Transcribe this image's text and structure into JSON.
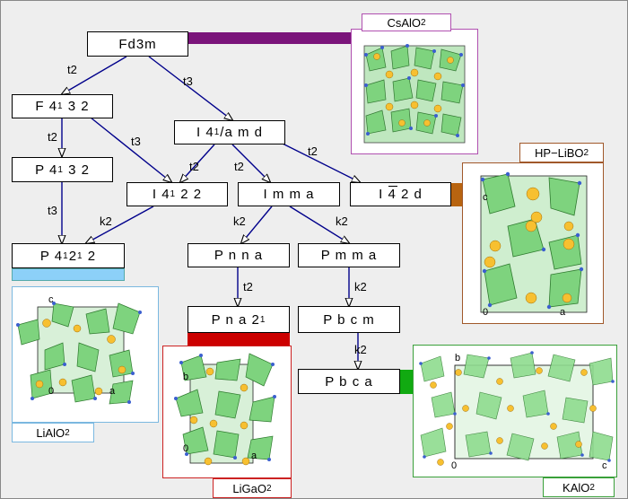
{
  "space_groups": {
    "fd3m": {
      "pre": "Fd3m",
      "sub": "",
      "post": ""
    },
    "f4132": {
      "pre": "F 4",
      "sub": "1",
      "post": "3 2"
    },
    "p4132": {
      "pre": "P 4",
      "sub": "1",
      "post": "3 2"
    },
    "i41amd": {
      "pre": "I 4",
      "sub": "1",
      "post": "/a m d"
    },
    "i4122": {
      "pre": "I 4",
      "sub": "1",
      "post": "2 2"
    },
    "imma": {
      "pre": "I m m a",
      "sub": "",
      "post": ""
    },
    "i42d": {
      "pre": "I 4 2 d",
      "sub": "",
      "post": ""
    },
    "p41212": {
      "pre": "P 4",
      "sub": "1",
      "mid": "2",
      "sub2": "1",
      "post": "2"
    },
    "pnna": {
      "pre": "P n n a",
      "sub": "",
      "post": ""
    },
    "pmma": {
      "pre": "P m m a",
      "sub": "",
      "post": ""
    },
    "pna21": {
      "pre": "P n a 2",
      "sub": "1",
      "post": ""
    },
    "pbcm": {
      "pre": "P b c m",
      "sub": "",
      "post": ""
    },
    "pbca": {
      "pre": "P b c a",
      "sub": "",
      "post": ""
    }
  },
  "transitions": {
    "t2a": "t2",
    "t3a": "t3",
    "t2b": "t2",
    "t3b": "t3",
    "t3c": "t3",
    "t2c": "t2",
    "t2d": "t2",
    "t2e": "t2",
    "k2a": "k2",
    "k2b": "k2",
    "k2c": "k2",
    "t2f": "t2",
    "k2d": "k2",
    "k2e": "k2"
  },
  "structures": {
    "csalo2": {
      "pre": "CsAlO",
      "sub": " 2",
      "color": "#a020a0"
    },
    "hplibo2": {
      "pre": "HP−LiBO",
      "sub": "2",
      "color": "#b06a20"
    },
    "lialo2": {
      "pre": "LiAlO",
      "sub": "2",
      "color": "#80c8f0"
    },
    "ligao2": {
      "pre": "LiGaO",
      "sub": "2",
      "color": "#cc0000"
    },
    "kalo2": {
      "pre": "KAlO",
      "sub": "2",
      "color": "#1aa01a"
    }
  },
  "axes": {
    "hp_c": "c",
    "hp_0": "0",
    "hp_a": "a",
    "li_c": "c",
    "li_0": "0",
    "li_a": "a",
    "ga_b": "b",
    "ga_0": "0",
    "ga_a": "a",
    "k_b": "b",
    "k_0": "0",
    "k_c": "c"
  }
}
